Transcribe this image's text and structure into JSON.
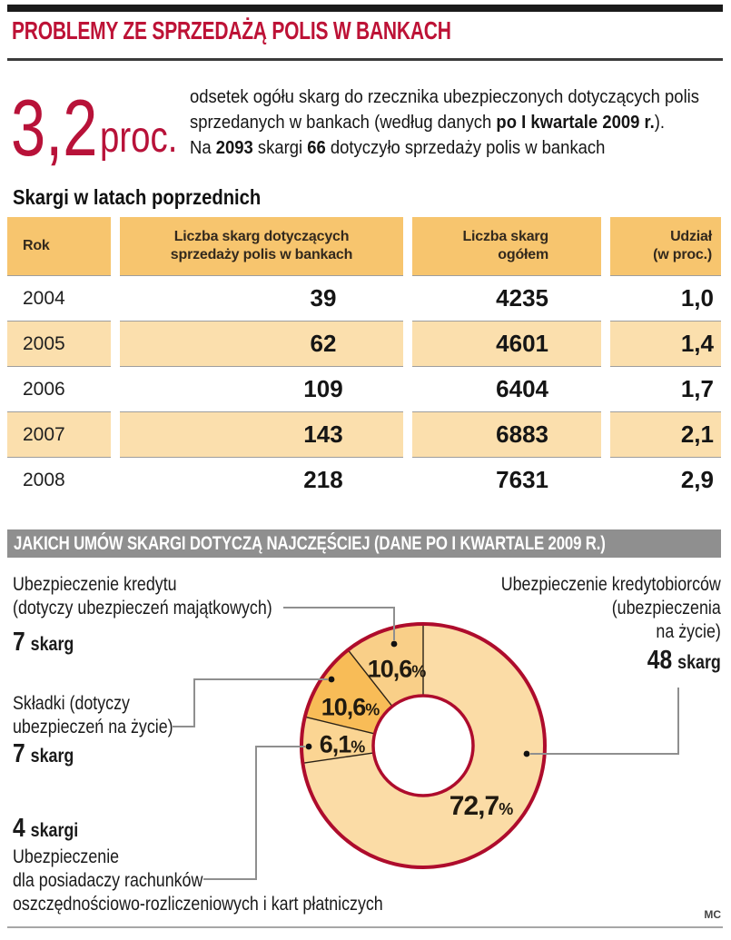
{
  "header": {
    "title": "PROBLEMY ZE SPRZEDAŻĄ POLIS W BANKACH"
  },
  "stat": {
    "value": "3,2",
    "unit": "proc.",
    "description": [
      {
        "text": "odsetek ogółu skarg do rzecznika ubezpieczonych dotyczących polis",
        "br": true
      },
      {
        "text": "sprzedanych w bankach (według danych "
      },
      {
        "text": "po I kwartale 2009 r.",
        "bold": true
      },
      {
        "text": ")."
      }
    ],
    "description2": [
      {
        "text": "Na "
      },
      {
        "text": "2093",
        "bold": true
      },
      {
        "text": " skargi "
      },
      {
        "text": "66",
        "bold": true
      },
      {
        "text": " dotyczyło sprzedaży polis w bankach"
      }
    ]
  },
  "table": {
    "title": "Skargi w latach poprzednich",
    "columns": [
      {
        "lines": [
          "Rok"
        ]
      },
      {
        "lines": [
          "Liczba skarg dotyczących",
          "sprzedaży polis w bankach"
        ]
      },
      {
        "lines": [
          "Liczba skarg",
          "ogółem"
        ]
      },
      {
        "lines": [
          "Udział",
          "(w proc.)"
        ]
      }
    ],
    "rows": [
      {
        "year": "2004",
        "bank": "39",
        "total": "4235",
        "share": "1,0"
      },
      {
        "year": "2005",
        "bank": "62",
        "total": "4601",
        "share": "1,4"
      },
      {
        "year": "2006",
        "bank": "109",
        "total": "6404",
        "share": "1,7"
      },
      {
        "year": "2007",
        "bank": "143",
        "total": "6883",
        "share": "2,1"
      },
      {
        "year": "2008",
        "bank": "218",
        "total": "7631",
        "share": "2,9"
      }
    ],
    "header_color": "#F7C56E",
    "stripe_color": "#FBDFAD"
  },
  "section2": {
    "title": "JAKICH UMÓW SKARGI DOTYCZĄ NAJCZĘŚCIEJ (DANE PO I KWARTALE 2009 R.)",
    "bar_color": "#8F8F8F"
  },
  "chart_data": {
    "type": "pie",
    "donut": true,
    "title": "JAKICH UMÓW SKARGI DOTYCZĄ NAJCZĘŚCIEJ (DANE PO I KWARTALE 2009 R.)",
    "direction": "clockwise",
    "start_angle_deg": 0,
    "percent_sign": "%",
    "ring_color": "#AE0C2D",
    "slices": [
      {
        "label": "Ubezpieczenie kredytobiorców (ubezpieczenia na życie)",
        "value": 72.7,
        "pct_label": "72,7",
        "complaints": 48,
        "color": "#FBDCA6"
      },
      {
        "label": "Ubezpieczenie dla posiadaczy rachunków oszczędnościowo-rozliczeniowych i kart płatniczych",
        "value": 6.1,
        "pct_label": "6,1",
        "complaints": 4,
        "color": "#FBD593"
      },
      {
        "label": "Składki (dotyczy ubezpieczeń na życie)",
        "value": 10.6,
        "pct_label": "10,6",
        "complaints": 7,
        "color": "#F8BC57"
      },
      {
        "label": "Ubezpieczenie kredytu (dotyczy ubezpieczeń majątkowych)",
        "value": 10.6,
        "pct_label": "10,6",
        "complaints": 7,
        "color": "#F9CF88"
      }
    ]
  },
  "annotations": {
    "kredytu": {
      "lines": [
        "Ubezpieczenie kredytu",
        "(dotyczy ubezpieczeń majątkowych)"
      ],
      "count": "7",
      "unit": "skarg"
    },
    "kredytobiorcow": {
      "lines": [
        "Ubezpieczenie kredytobiorców",
        "(ubezpieczenia",
        "na życie)"
      ],
      "count": "48",
      "unit": "skarg"
    },
    "skladki": {
      "lines": [
        "Składki (dotyczy",
        "ubezpieczeń na życie)"
      ],
      "count": "7",
      "unit": "skarg"
    },
    "ror": {
      "count": "4",
      "unit": "skargi",
      "lines": [
        "Ubezpieczenie",
        "dla posiadaczy rachunków",
        "oszczędnościowo-rozliczeniowych i kart płatniczych"
      ]
    }
  },
  "footer": {
    "credit": "MC"
  },
  "colors": {
    "accent_red": "#BD1236",
    "ring_crimson": "#AE0C2D",
    "bar_gray": "#8F8F8F"
  }
}
